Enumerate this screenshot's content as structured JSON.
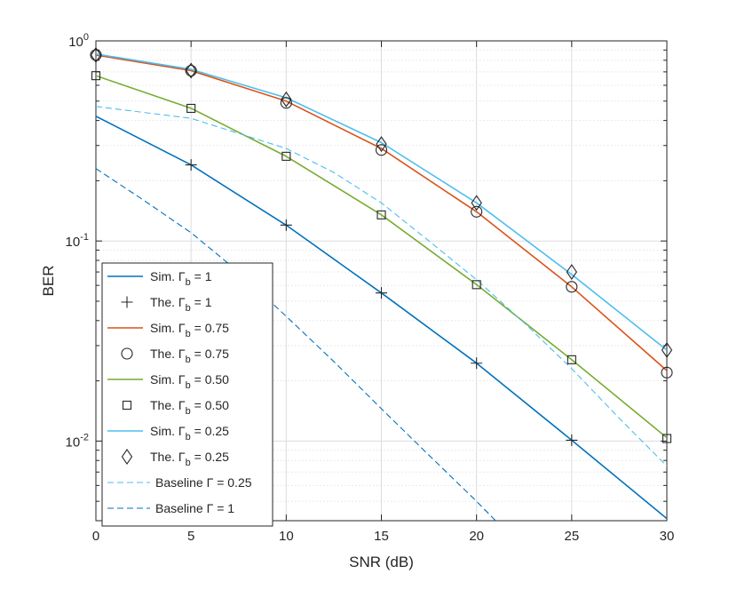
{
  "chart_data": {
    "type": "line",
    "title": "",
    "xlabel": "SNR (dB)",
    "ylabel": "BER",
    "yscale": "log",
    "xlim": [
      0,
      30
    ],
    "ylim": [
      0.004,
      1
    ],
    "grid": true,
    "legend_position": "bottom-left",
    "x_ticks": [
      0,
      5,
      10,
      15,
      20,
      25,
      30
    ],
    "y_ticks": [
      {
        "value": 0.01,
        "base": "10",
        "exp": "-2"
      },
      {
        "value": 0.1,
        "base": "10",
        "exp": "-1"
      },
      {
        "value": 1,
        "base": "10",
        "exp": "0"
      }
    ],
    "x": [
      0,
      5,
      10,
      15,
      20,
      25,
      30
    ],
    "series": [
      {
        "name": "Sim. Γb = 1",
        "prefix": "Sim. Γ",
        "sub": "b",
        "suffix": " = 1",
        "style": "line",
        "color": "#0072BD",
        "values": [
          0.42,
          0.24,
          0.12,
          0.055,
          0.0245,
          0.0101,
          0.0041
        ]
      },
      {
        "name": "The. Γb = 1",
        "prefix": "The. Γ",
        "sub": "b",
        "suffix": " = 1",
        "style": "marker",
        "marker": "plus",
        "color": "#262626",
        "values": [
          null,
          0.24,
          0.12,
          0.055,
          0.0245,
          0.0101,
          null
        ]
      },
      {
        "name": "Sim. Γb = 0.75",
        "prefix": "Sim. Γ",
        "sub": "b",
        "suffix": " = 0.75",
        "style": "line",
        "color": "#D95319",
        "values": [
          0.85,
          0.71,
          0.5,
          0.29,
          0.14,
          0.059,
          0.0225
        ]
      },
      {
        "name": "The. Γb = 0.75",
        "prefix": "The. Γ",
        "sub": "b",
        "suffix": " = 0.75",
        "style": "marker",
        "marker": "circle",
        "color": "#262626",
        "values": [
          0.85,
          0.71,
          0.49,
          0.285,
          0.14,
          0.059,
          0.022
        ]
      },
      {
        "name": "Sim. Γb = 0.50",
        "prefix": "Sim. Γ",
        "sub": "b",
        "suffix": " = 0.50",
        "style": "line",
        "color": "#77AC30",
        "values": [
          0.67,
          0.46,
          0.265,
          0.135,
          0.0605,
          0.0255,
          0.0104
        ]
      },
      {
        "name": "The. Γb = 0.50",
        "prefix": "The. Γ",
        "sub": "b",
        "suffix": " = 0.50",
        "style": "marker",
        "marker": "square",
        "color": "#262626",
        "values": [
          0.67,
          0.46,
          0.265,
          0.135,
          0.0605,
          0.0255,
          0.0103
        ]
      },
      {
        "name": "Sim. Γb = 0.25",
        "prefix": "Sim. Γ",
        "sub": "b",
        "suffix": " = 0.25",
        "style": "line",
        "color": "#4DBEEE",
        "values": [
          0.86,
          0.72,
          0.52,
          0.31,
          0.155,
          0.068,
          0.0285
        ]
      },
      {
        "name": "The. Γb = 0.25",
        "prefix": "The. Γ",
        "sub": "b",
        "suffix": " = 0.25",
        "style": "marker",
        "marker": "diamond",
        "color": "#262626",
        "values": [
          0.85,
          0.71,
          0.51,
          0.305,
          0.155,
          0.07,
          0.0285
        ]
      },
      {
        "name": "Baseline Γ = 0.25",
        "prefix": "Baseline Γ",
        "sub": "",
        "suffix": " = 0.25",
        "style": "dashed",
        "color": "#4DBEEE",
        "x": [
          0,
          5,
          10,
          12.5,
          15,
          17.5,
          20,
          22.5,
          25,
          27.5,
          30
        ],
        "values": [
          0.47,
          0.41,
          0.29,
          0.22,
          0.155,
          0.1,
          0.064,
          0.039,
          0.023,
          0.013,
          0.0075
        ]
      },
      {
        "name": "Baseline Γ = 1",
        "prefix": "Baseline Γ",
        "sub": "",
        "suffix": " = 1",
        "style": "dashed",
        "color": "#0072BD",
        "x": [
          0,
          2.5,
          5,
          7.5,
          10,
          12.5,
          15,
          17.5,
          20,
          21
        ],
        "values": [
          0.23,
          0.16,
          0.11,
          0.07,
          0.042,
          0.025,
          0.0145,
          0.0085,
          0.005,
          0.004
        ]
      }
    ]
  }
}
